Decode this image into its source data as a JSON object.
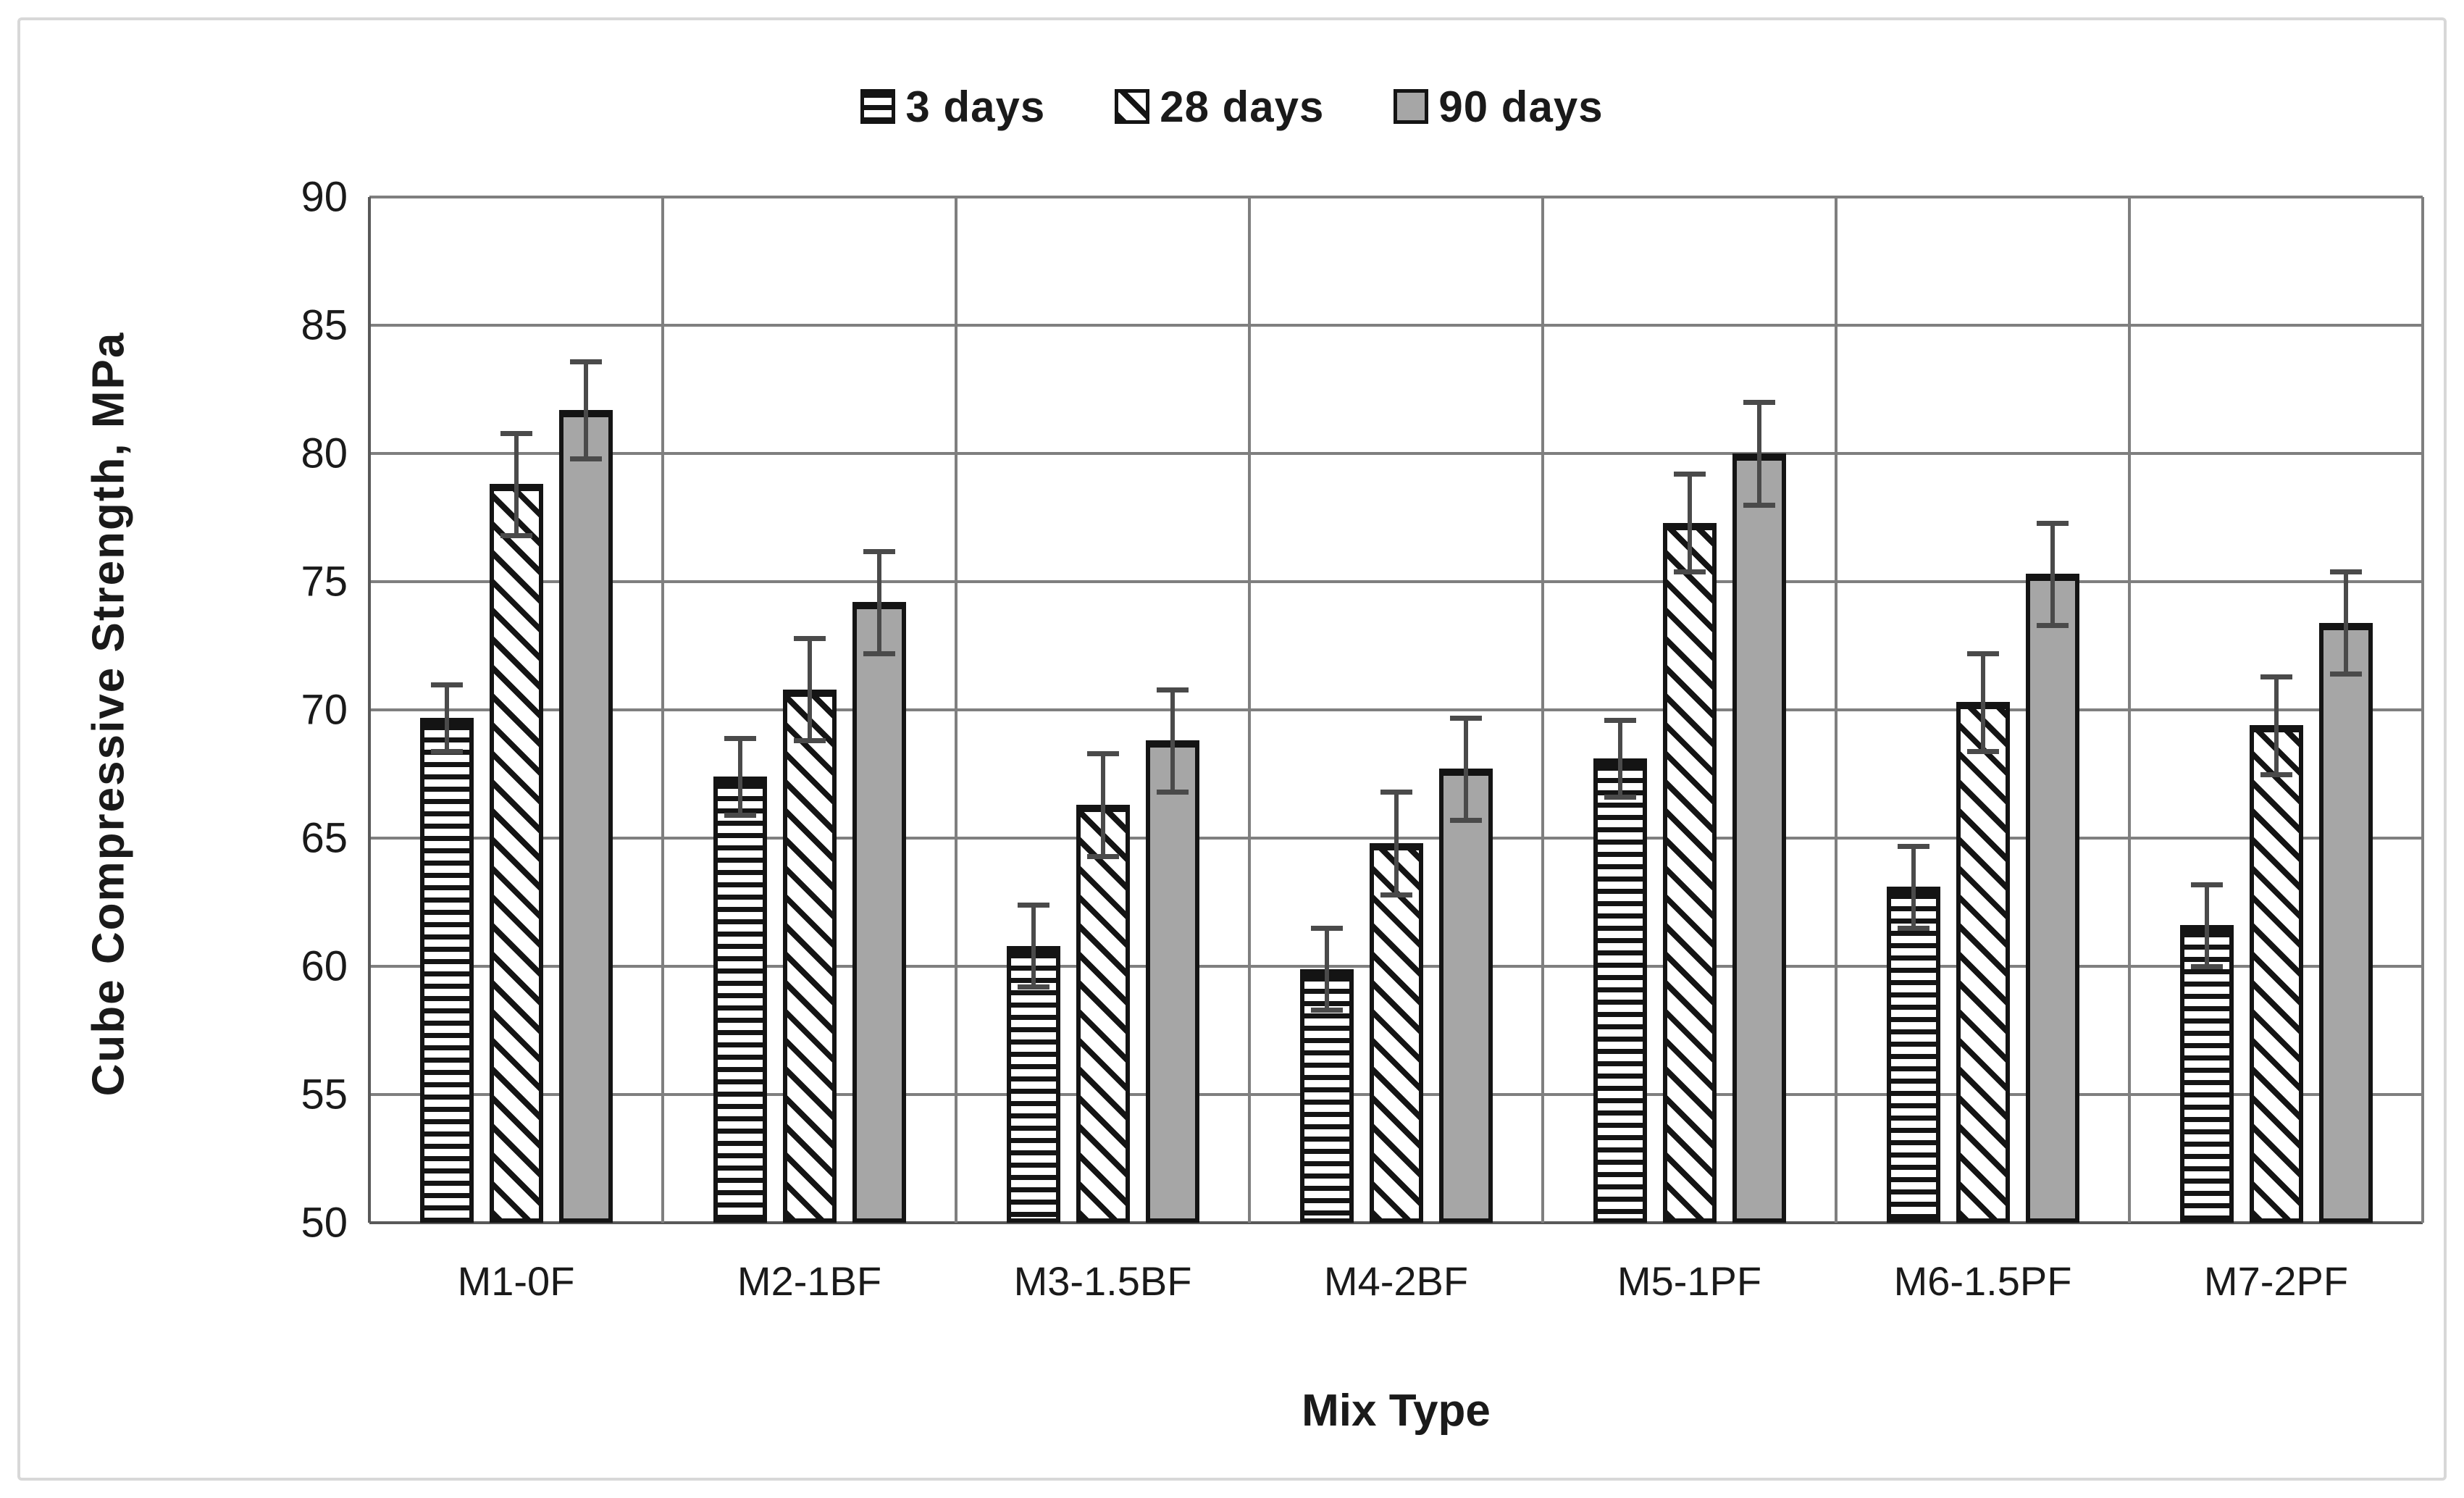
{
  "colors": {
    "background": "#ffffff",
    "figure_border": "#d8d8d8",
    "gridline": "#7f7f7f",
    "axis_line": "#595959",
    "bar_border": "#141414",
    "bar_gray_fill": "#a6a6a6",
    "error_bar": "#4a4a4a",
    "text": "#1a1a1a"
  },
  "chart_data": {
    "type": "bar",
    "title": "",
    "xlabel": "Mix Type",
    "ylabel": "Cube Compressive  Strength, MPa",
    "ylim": [
      50,
      90
    ],
    "ytick_step": 5,
    "yticks": [
      50,
      55,
      60,
      65,
      70,
      75,
      80,
      85,
      90
    ],
    "grid": true,
    "legend_position": "top-center",
    "categories": [
      "M1-0F",
      "M2-1BF",
      "M3-1.5BF",
      "M4-2BF",
      "M5-1PF",
      "M6-1.5PF",
      "M7-2PF"
    ],
    "series": [
      {
        "name": "3 days",
        "pattern": "horizontal-stripes",
        "values": [
          69.7,
          67.4,
          60.8,
          59.9,
          68.1,
          63.1,
          61.6
        ],
        "errors": [
          1.3,
          1.5,
          1.6,
          1.6,
          1.5,
          1.6,
          1.6
        ]
      },
      {
        "name": "28 days",
        "pattern": "diagonal-stripes",
        "values": [
          78.8,
          70.8,
          66.3,
          64.8,
          77.3,
          70.3,
          69.4
        ],
        "errors": [
          2.0,
          2.0,
          2.0,
          2.0,
          1.9,
          1.9,
          1.9
        ]
      },
      {
        "name": "90 days",
        "pattern": "solid-gray",
        "values": [
          81.7,
          74.2,
          68.8,
          67.7,
          80.0,
          75.3,
          73.4
        ],
        "errors": [
          1.9,
          2.0,
          2.0,
          2.0,
          2.0,
          2.0,
          2.0
        ]
      }
    ]
  }
}
